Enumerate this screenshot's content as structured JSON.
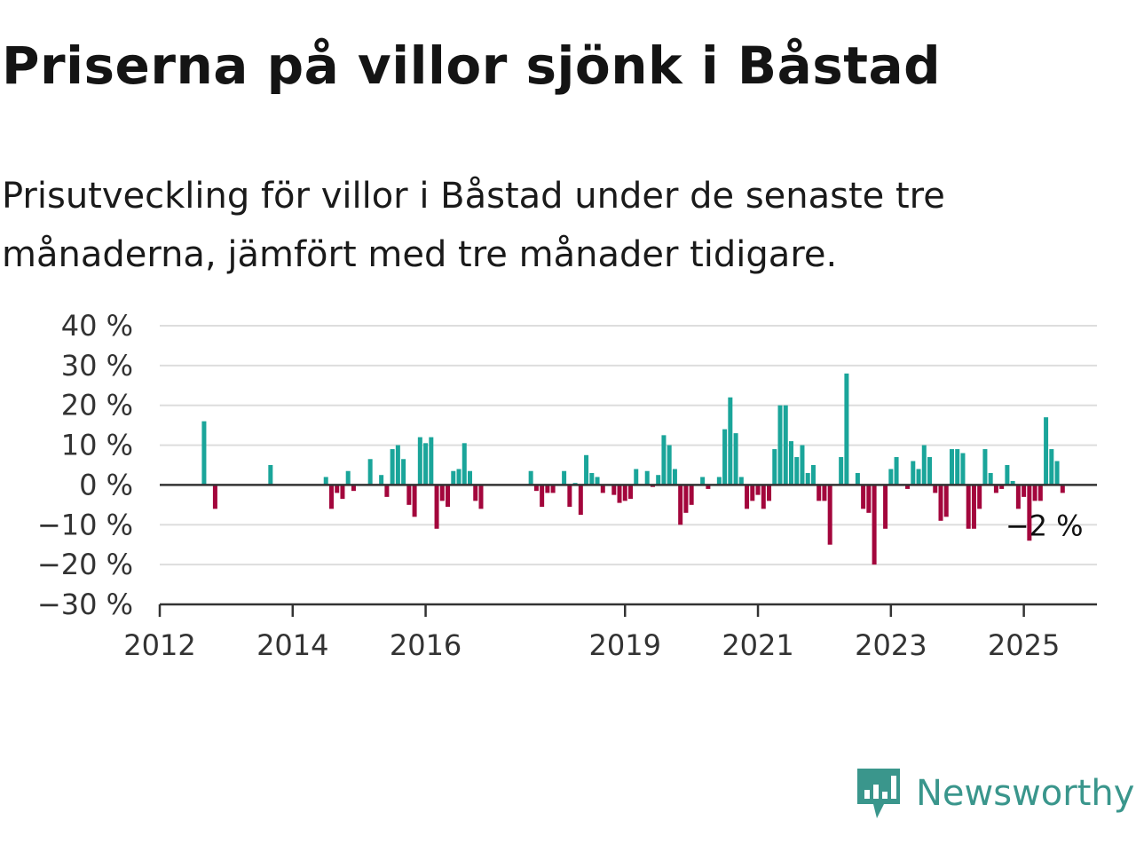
{
  "title": "Priserna på villor sjönk i Båstad",
  "subtitle": "Prisutveckling för villor i Båstad under de senaste tre månaderna, jämfört med tre månader tidigare.",
  "brand": {
    "name": "Newsworthy",
    "color": "#3a968c",
    "icon": "newsworthy-logo-icon"
  },
  "colors": {
    "positive": "#1aa59a",
    "negative": "#a3063c",
    "grid": "#dddddd",
    "axis": "#333333"
  },
  "chart_data": {
    "type": "bar",
    "title": "Priserna på villor sjönk i Båstad",
    "xlabel": "",
    "ylabel": "",
    "x_ticks": [
      "2012",
      "2014",
      "2016",
      "2019",
      "2021",
      "2023",
      "2025"
    ],
    "y_ticks": [
      "40 %",
      "30 %",
      "20 %",
      "10 %",
      "0 %",
      "−10 %",
      "−20 %",
      "−30 %"
    ],
    "ylim": [
      -30,
      40
    ],
    "grid": true,
    "annotation": {
      "text": "−2 %",
      "x": "2025-05",
      "y": -2
    },
    "series": [
      {
        "values": [
          [
            "2012-09",
            16
          ],
          [
            "2012-11",
            -6
          ],
          [
            "2013-09",
            5
          ],
          [
            "2014-07",
            2
          ],
          [
            "2014-08",
            -6
          ],
          [
            "2014-09",
            -2
          ],
          [
            "2014-10",
            -3.5
          ],
          [
            "2014-11",
            3.5
          ],
          [
            "2014-12",
            -1.5
          ],
          [
            "2015-03",
            6.5
          ],
          [
            "2015-05",
            2.5
          ],
          [
            "2015-06",
            -3
          ],
          [
            "2015-07",
            9
          ],
          [
            "2015-08",
            10
          ],
          [
            "2015-09",
            6.5
          ],
          [
            "2015-10",
            -5
          ],
          [
            "2015-11",
            -8
          ],
          [
            "2015-12",
            12
          ],
          [
            "2016-01",
            10.5
          ],
          [
            "2016-02",
            12
          ],
          [
            "2016-03",
            -11
          ],
          [
            "2016-04",
            -4
          ],
          [
            "2016-05",
            -5.5
          ],
          [
            "2016-06",
            3.5
          ],
          [
            "2016-07",
            4
          ],
          [
            "2016-08",
            10.5
          ],
          [
            "2016-09",
            3.5
          ],
          [
            "2016-10",
            -4
          ],
          [
            "2016-11",
            -6
          ],
          [
            "2017-08",
            3.5
          ],
          [
            "2017-09",
            -1.5
          ],
          [
            "2017-10",
            -5.5
          ],
          [
            "2017-11",
            -2
          ],
          [
            "2017-12",
            -2
          ],
          [
            "2018-02",
            3.5
          ],
          [
            "2018-03",
            -5.5
          ],
          [
            "2018-04",
            0.5
          ],
          [
            "2018-05",
            -7.5
          ],
          [
            "2018-06",
            7.5
          ],
          [
            "2018-07",
            3
          ],
          [
            "2018-08",
            2
          ],
          [
            "2018-09",
            -2
          ],
          [
            "2018-11",
            -2.5
          ],
          [
            "2018-12",
            -4.5
          ],
          [
            "2019-01",
            -4
          ],
          [
            "2019-02",
            -3.5
          ],
          [
            "2019-03",
            4
          ],
          [
            "2019-05",
            3.5
          ],
          [
            "2019-06",
            -0.5
          ],
          [
            "2019-07",
            2.5
          ],
          [
            "2019-08",
            12.5
          ],
          [
            "2019-09",
            10
          ],
          [
            "2019-10",
            4
          ],
          [
            "2019-11",
            -10
          ],
          [
            "2019-12",
            -7
          ],
          [
            "2020-01",
            -5
          ],
          [
            "2020-03",
            2
          ],
          [
            "2020-04",
            -1
          ],
          [
            "2020-06",
            2
          ],
          [
            "2020-07",
            14
          ],
          [
            "2020-08",
            22
          ],
          [
            "2020-09",
            13
          ],
          [
            "2020-10",
            2
          ],
          [
            "2020-11",
            -6
          ],
          [
            "2020-12",
            -4
          ],
          [
            "2021-01",
            -2.5
          ],
          [
            "2021-02",
            -6
          ],
          [
            "2021-03",
            -4
          ],
          [
            "2021-04",
            9
          ],
          [
            "2021-05",
            20
          ],
          [
            "2021-06",
            20
          ],
          [
            "2021-07",
            11
          ],
          [
            "2021-08",
            7
          ],
          [
            "2021-09",
            10
          ],
          [
            "2021-10",
            3
          ],
          [
            "2021-11",
            5
          ],
          [
            "2021-12",
            -4
          ],
          [
            "2022-01",
            -4
          ],
          [
            "2022-02",
            -15
          ],
          [
            "2022-04",
            7
          ],
          [
            "2022-05",
            28
          ],
          [
            "2022-07",
            3
          ],
          [
            "2022-08",
            -6
          ],
          [
            "2022-09",
            -7
          ],
          [
            "2022-10",
            -20
          ],
          [
            "2022-12",
            -11
          ],
          [
            "2023-01",
            4
          ],
          [
            "2023-02",
            7
          ],
          [
            "2023-04",
            -1
          ],
          [
            "2023-05",
            6
          ],
          [
            "2023-06",
            4
          ],
          [
            "2023-07",
            10
          ],
          [
            "2023-08",
            7
          ],
          [
            "2023-09",
            -2
          ],
          [
            "2023-10",
            -9
          ],
          [
            "2023-11",
            -8
          ],
          [
            "2023-12",
            9
          ],
          [
            "2024-01",
            9
          ],
          [
            "2024-02",
            8
          ],
          [
            "2024-03",
            -11
          ],
          [
            "2024-04",
            -11
          ],
          [
            "2024-05",
            -6
          ],
          [
            "2024-06",
            9
          ],
          [
            "2024-07",
            3
          ],
          [
            "2024-08",
            -2
          ],
          [
            "2024-09",
            -1
          ],
          [
            "2024-10",
            5
          ],
          [
            "2024-11",
            1
          ],
          [
            "2024-12",
            -6
          ],
          [
            "2025-01",
            -3
          ],
          [
            "2025-02",
            -14
          ],
          [
            "2025-03",
            -4
          ],
          [
            "2025-04",
            -4
          ],
          [
            "2025-05",
            17
          ],
          [
            "2025-06",
            9
          ],
          [
            "2025-07",
            6
          ],
          [
            "2025-08",
            -2
          ]
        ]
      }
    ]
  }
}
